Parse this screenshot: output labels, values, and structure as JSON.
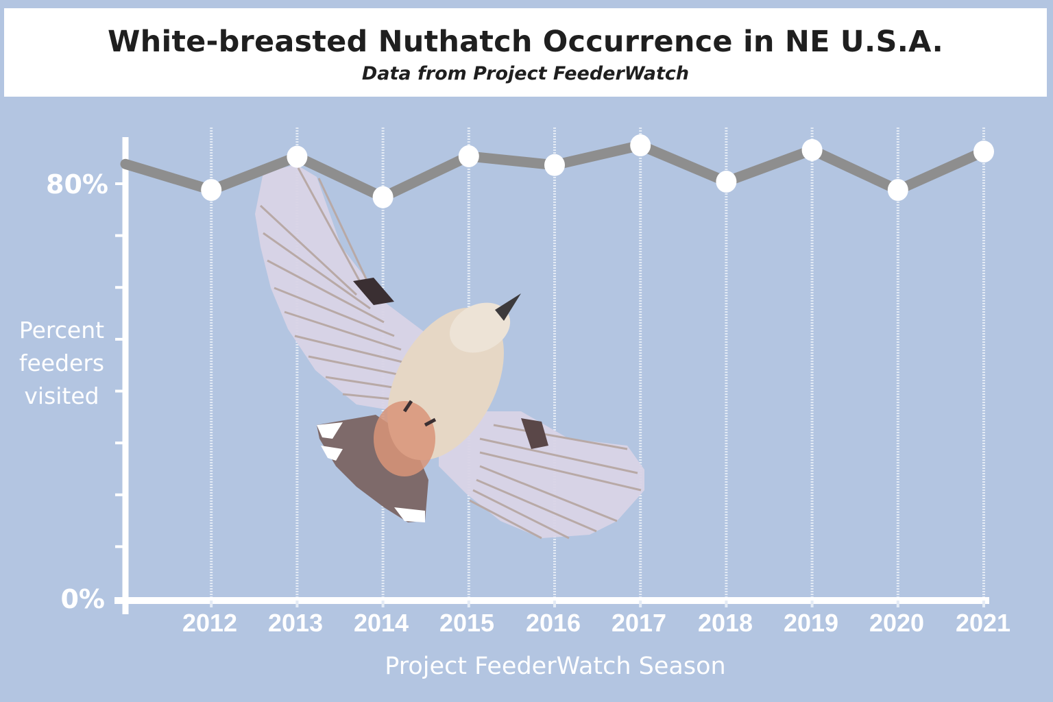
{
  "header": {
    "title": "White-breasted Nuthatch Occurrence in NE U.S.A.",
    "subtitle": "Data from Project FeederWatch"
  },
  "axes": {
    "ylabel": "Percent feeders visited",
    "ylabel_lines": [
      "Percent",
      "feeders",
      "visited"
    ],
    "xlabel": "Project FeederWatch Season",
    "y_ticks": [
      "80%",
      "0%"
    ],
    "x_ticks": [
      "2012",
      "2013",
      "2014",
      "2015",
      "2016",
      "2017",
      "2018",
      "2019",
      "2020",
      "2021"
    ]
  },
  "colors": {
    "background": "#B3C5E1",
    "line": "#8E8E8E",
    "marker": "#FFFFFF",
    "axis": "#FFFFFF",
    "title_box": "#FFFFFF",
    "title_text": "#1F1F1F"
  },
  "chart_data": {
    "type": "line",
    "title": "White-breasted Nuthatch Occurrence in NE U.S.A.",
    "subtitle": "Data from Project FeederWatch",
    "xlabel": "Project FeederWatch Season",
    "ylabel": "Percent feeders visited",
    "x": [
      "2011",
      "2012",
      "2013",
      "2014",
      "2015",
      "2016",
      "2017",
      "2018",
      "2019",
      "2020",
      "2021"
    ],
    "series": [
      {
        "name": "Percent feeders visited",
        "values": [
          83.8,
          78.8,
          85.2,
          77.4,
          85.3,
          83.6,
          87.4,
          80.4,
          86.5,
          78.8,
          86.2
        ]
      }
    ],
    "ylim": [
      0,
      90
    ],
    "y_tick_step": 10,
    "y_tick_labels_shown": [
      "0%",
      "80%"
    ],
    "x_tick_labels": [
      "2012",
      "2013",
      "2014",
      "2015",
      "2016",
      "2017",
      "2018",
      "2019",
      "2020",
      "2021"
    ],
    "grid": "vertical dotted lines at each season",
    "legend": "none",
    "annotations": [
      "Photo of a White-breasted Nuthatch in flight overlaid on the plot area"
    ]
  },
  "image": {
    "subject": "White-breasted Nuthatch in flight (photo)"
  }
}
